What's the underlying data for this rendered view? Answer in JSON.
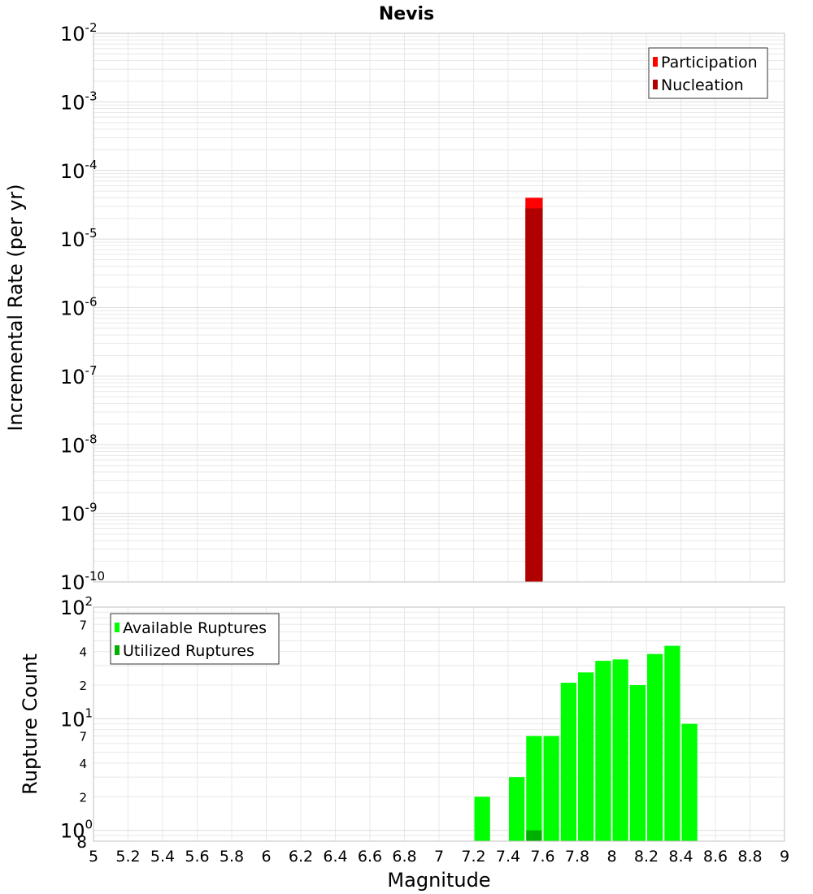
{
  "title": "Nevis",
  "xlabel": "Magnitude",
  "x_ticks": [
    "5",
    "5.2",
    "5.4",
    "5.6",
    "5.8",
    "6",
    "6.2",
    "6.4",
    "6.6",
    "6.8",
    "7",
    "7.2",
    "7.4",
    "7.6",
    "7.8",
    "8",
    "8.2",
    "8.4",
    "8.6",
    "8.8",
    "9"
  ],
  "colors": {
    "participation": "#ff0000",
    "nucleation": "#b00000",
    "available": "#00ff00",
    "utilized": "#00b000",
    "grid": "#e8e8e8",
    "frame": "#c0c0c0"
  },
  "chart_data": [
    {
      "type": "bar",
      "ylabel": "Incremental Rate (per yr)",
      "y_scale": "log",
      "ylim": [
        1e-10,
        0.01
      ],
      "xlim": [
        5,
        9
      ],
      "y_tick_labels": [
        {
          "base": "10",
          "exp": "-2"
        },
        {
          "base": "10",
          "exp": "-3"
        },
        {
          "base": "10",
          "exp": "-4"
        },
        {
          "base": "10",
          "exp": "-5"
        },
        {
          "base": "10",
          "exp": "-6"
        },
        {
          "base": "10",
          "exp": "-7"
        },
        {
          "base": "10",
          "exp": "-8"
        },
        {
          "base": "10",
          "exp": "-9"
        },
        {
          "base": "10",
          "exp": "-10"
        }
      ],
      "legend": {
        "position": "top-right",
        "entries": [
          "Participation",
          "Nucleation"
        ]
      },
      "series": [
        {
          "name": "Participation",
          "points": [
            {
              "x": 7.55,
              "y": 4e-05
            }
          ]
        },
        {
          "name": "Nucleation",
          "points": [
            {
              "x": 7.55,
              "y": 2.8e-05
            }
          ]
        }
      ]
    },
    {
      "type": "bar",
      "ylabel": "Rupture Count",
      "y_scale": "log",
      "ylim": [
        0.8,
        100
      ],
      "xlim": [
        5,
        9
      ],
      "y_tick_labels": [
        {
          "base": "10",
          "exp": "2"
        },
        {
          "base": "7",
          "exp": ""
        },
        {
          "base": "4",
          "exp": ""
        },
        {
          "base": "2",
          "exp": ""
        },
        {
          "base": "10",
          "exp": "1"
        },
        {
          "base": "7",
          "exp": ""
        },
        {
          "base": "4",
          "exp": ""
        },
        {
          "base": "2",
          "exp": ""
        },
        {
          "base": "10",
          "exp": "0"
        },
        {
          "base": "8",
          "exp": ""
        }
      ],
      "legend": {
        "position": "top-left",
        "entries": [
          "Available Ruptures",
          "Utilized Ruptures"
        ]
      },
      "series": [
        {
          "name": "Available Ruptures",
          "points": [
            {
              "x": 7.25,
              "y": 2
            },
            {
              "x": 7.45,
              "y": 3
            },
            {
              "x": 7.55,
              "y": 7
            },
            {
              "x": 7.65,
              "y": 7
            },
            {
              "x": 7.75,
              "y": 21
            },
            {
              "x": 7.85,
              "y": 26
            },
            {
              "x": 7.95,
              "y": 33
            },
            {
              "x": 8.05,
              "y": 34
            },
            {
              "x": 8.15,
              "y": 20
            },
            {
              "x": 8.25,
              "y": 38
            },
            {
              "x": 8.35,
              "y": 45
            },
            {
              "x": 8.45,
              "y": 9
            }
          ]
        },
        {
          "name": "Utilized Ruptures",
          "points": [
            {
              "x": 7.55,
              "y": 1
            }
          ]
        }
      ]
    }
  ]
}
